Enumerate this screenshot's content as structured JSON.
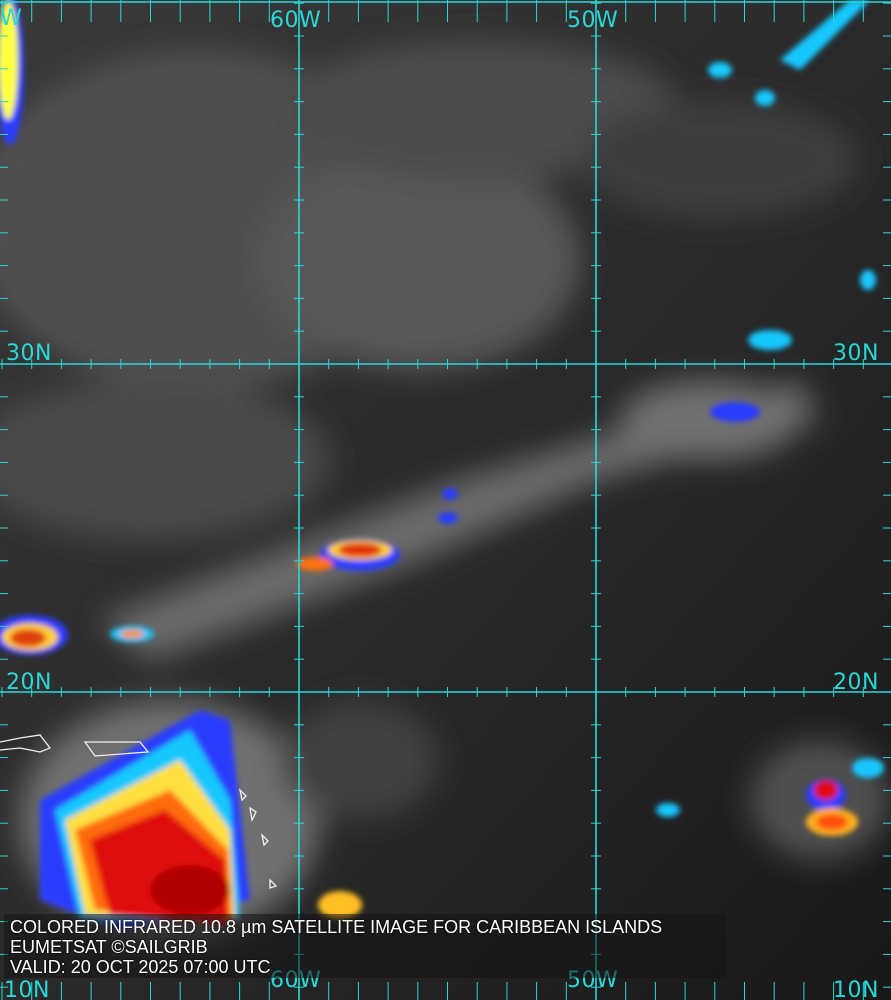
{
  "image": {
    "kind": "colored infrared satellite image",
    "grid_color": "#28d8d8",
    "palette": [
      "#202020",
      "#8a8a8a",
      "#e0e0e0",
      "#2a3cff",
      "#18c8ff",
      "#ffff40",
      "#ff8a20",
      "#e01010",
      "#b00000"
    ]
  },
  "grid_labels": {
    "top": [
      "W",
      "60W",
      "50W"
    ],
    "left": [
      "30N",
      "20N",
      "10N"
    ],
    "right": [
      "30N",
      "20N",
      "10N"
    ],
    "bottom": [
      "60W",
      "50W"
    ]
  },
  "caption": {
    "line1": "COLORED INFRARED 10.8 µm SATELLITE IMAGE FOR CARIBBEAN ISLANDS",
    "line2": "EUMETSAT ©SAILGRIB",
    "line3": "VALID:  20 OCT 2025 07:00 UTC"
  }
}
